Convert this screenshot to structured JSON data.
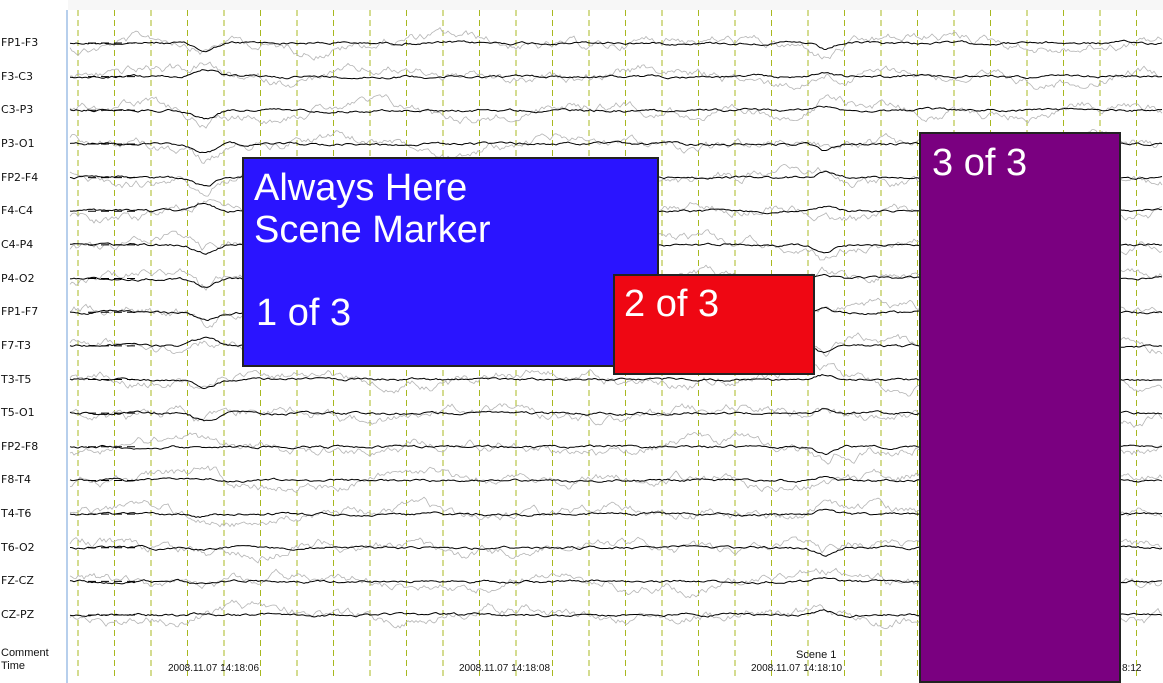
{
  "channels": [
    "FP1-F3",
    "F3-C3",
    "C3-P3",
    "P3-O1",
    "FP2-F4",
    "F4-C4",
    "C4-P4",
    "P4-O2",
    "FP1-F7",
    "F7-T3",
    "T3-T5",
    "T5-O1",
    "FP2-F8",
    "F8-T4",
    "T4-T6",
    "T6-O2",
    "FZ-CZ",
    "CZ-PZ"
  ],
  "footer": {
    "comment_label": "Comment",
    "time_label": "Time"
  },
  "timestamps": [
    "2008.11.07 14:18:06",
    "2008.11.07 14:18:08",
    "2008.11.07 14:18:10",
    "8:12"
  ],
  "scene_comment": "Scene 1",
  "markers": {
    "always_here": {
      "title": "Always Here\nScene Marker",
      "count": "1 of 3",
      "color": "#2a14ff"
    },
    "second": {
      "count": "2 of 3",
      "color": "#ef0713"
    },
    "third": {
      "count": "3 of 3",
      "color": "#7a0080"
    }
  },
  "colors": {
    "grid_line": "#a8b820",
    "trace_primary": "#000000",
    "trace_overlay": "#b4b4b4",
    "axis_line": "#9fbfe6"
  }
}
